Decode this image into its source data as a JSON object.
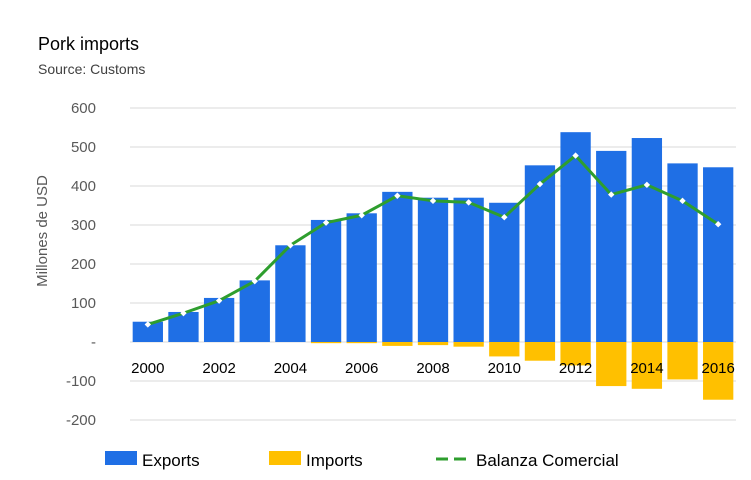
{
  "chart_data": {
    "type": "bar",
    "title": "Pork imports",
    "subtitle": "Source: Customs",
    "ylabel": "Millones de USD",
    "xlabel": "",
    "ylim": [
      -200,
      600
    ],
    "y_ticks": [
      600,
      500,
      400,
      300,
      200,
      100,
      0,
      -100,
      -200
    ],
    "y_tick_labels": [
      "600",
      "500",
      "400",
      "300",
      "200",
      "100",
      "-",
      "-100",
      "-200"
    ],
    "grid": true,
    "legend_position": "bottom",
    "categories": [
      "2000",
      "2001",
      "2002",
      "2003",
      "2004",
      "2005",
      "2006",
      "2007",
      "2008",
      "2009",
      "2010",
      "2011",
      "2012",
      "2013",
      "2014",
      "2015",
      "2016"
    ],
    "x_tick_labels": [
      "2000",
      "",
      "2002",
      "",
      "2004",
      "",
      "2006",
      "",
      "2008",
      "",
      "2010",
      "",
      "2012",
      "",
      "2014",
      "",
      "2016"
    ],
    "series": [
      {
        "name": "Exports",
        "kind": "bar",
        "color": "#1F6FE5",
        "values": [
          52,
          77,
          113,
          158,
          248,
          313,
          330,
          385,
          370,
          370,
          357,
          453,
          538,
          490,
          523,
          458,
          448
        ]
      },
      {
        "name": "Imports",
        "kind": "bar",
        "color": "#FFC000",
        "values": [
          0,
          0,
          0,
          0,
          0,
          -3,
          -3,
          -10,
          -8,
          -12,
          -37,
          -48,
          -60,
          -113,
          -120,
          -96,
          -148
        ]
      },
      {
        "name": "Balanza Comercial",
        "kind": "line",
        "color": "#2E9E2E",
        "marker_color": "#FFFFFF",
        "values": [
          45,
          74,
          106,
          156,
          248,
          306,
          325,
          375,
          362,
          358,
          320,
          405,
          478,
          378,
          403,
          362,
          302
        ]
      }
    ]
  }
}
